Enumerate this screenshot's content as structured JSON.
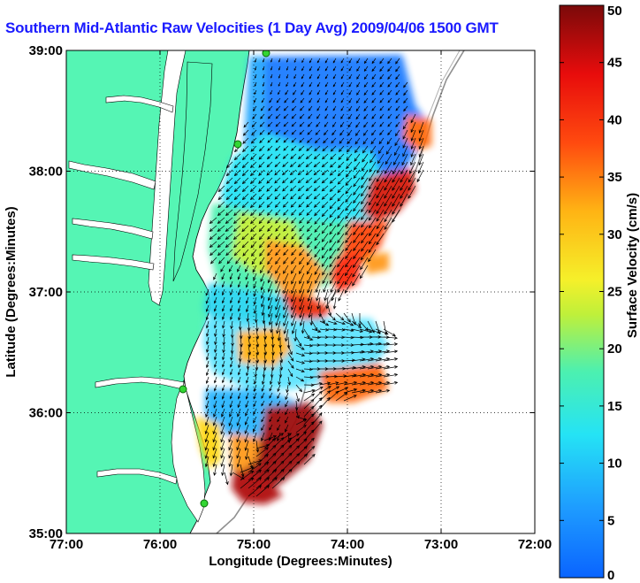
{
  "chart_data": {
    "type": "heatmap",
    "title": "Southern Mid-Atlantic Raw Velocities (1 Day Avg) 2009/04/06 1500 GMT",
    "xlabel": "Longitude (Degrees:Minutes)",
    "ylabel": "Latitude (Degrees:Minutes)",
    "x_ticks": [
      {
        "value": -77,
        "label": "77:00"
      },
      {
        "value": -76,
        "label": "76:00"
      },
      {
        "value": -75,
        "label": "75:00"
      },
      {
        "value": -74,
        "label": "74:00"
      },
      {
        "value": -73,
        "label": "73:00"
      },
      {
        "value": -72,
        "label": "72:00"
      }
    ],
    "y_ticks": [
      {
        "value": 35,
        "label": "35:00"
      },
      {
        "value": 36,
        "label": "36:00"
      },
      {
        "value": 37,
        "label": "37:00"
      },
      {
        "value": 38,
        "label": "38:00"
      },
      {
        "value": 39,
        "label": "39:00"
      }
    ],
    "xlim": [
      -77,
      -72
    ],
    "ylim": [
      35,
      39
    ],
    "grid": true,
    "colorbar": {
      "label": "Surface Velocity (cm/s)",
      "range": [
        0,
        50
      ],
      "ticks": [
        "0",
        "5",
        "10",
        "15",
        "20",
        "25",
        "30",
        "35",
        "40",
        "45",
        "50"
      ]
    },
    "velocity_field_samples": [
      {
        "lon": -74.8,
        "lat": 38.9,
        "speed": 4,
        "dir_deg": 200
      },
      {
        "lon": -74.2,
        "lat": 38.7,
        "speed": 8,
        "dir_deg": 210
      },
      {
        "lon": -73.5,
        "lat": 38.5,
        "speed": 10,
        "dir_deg": 220
      },
      {
        "lon": -73.2,
        "lat": 38.3,
        "speed": 32,
        "dir_deg": 200
      },
      {
        "lon": -74.6,
        "lat": 38.4,
        "speed": 12,
        "dir_deg": 225
      },
      {
        "lon": -75.2,
        "lat": 38.0,
        "speed": 20,
        "dir_deg": 225
      },
      {
        "lon": -74.4,
        "lat": 38.0,
        "speed": 18,
        "dir_deg": 230
      },
      {
        "lon": -73.4,
        "lat": 37.9,
        "speed": 42,
        "dir_deg": 210
      },
      {
        "lon": -75.3,
        "lat": 37.5,
        "speed": 22,
        "dir_deg": 230
      },
      {
        "lon": -74.6,
        "lat": 37.5,
        "speed": 16,
        "dir_deg": 220
      },
      {
        "lon": -73.9,
        "lat": 37.4,
        "speed": 30,
        "dir_deg": 215
      },
      {
        "lon": -73.7,
        "lat": 37.2,
        "speed": 45,
        "dir_deg": 210
      },
      {
        "lon": -74.6,
        "lat": 36.9,
        "speed": 38,
        "dir_deg": 200
      },
      {
        "lon": -75.2,
        "lat": 37.0,
        "speed": 12,
        "dir_deg": 200
      },
      {
        "lon": -75.0,
        "lat": 36.6,
        "speed": 26,
        "dir_deg": 170
      },
      {
        "lon": -74.3,
        "lat": 36.5,
        "speed": 18,
        "dir_deg": 90
      },
      {
        "lon": -73.8,
        "lat": 36.3,
        "speed": 40,
        "dir_deg": 80
      },
      {
        "lon": -75.2,
        "lat": 36.3,
        "speed": 12,
        "dir_deg": 200
      },
      {
        "lon": -74.8,
        "lat": 36.0,
        "speed": 10,
        "dir_deg": 210
      },
      {
        "lon": -74.3,
        "lat": 35.9,
        "speed": 44,
        "dir_deg": 40
      },
      {
        "lon": -75.2,
        "lat": 35.8,
        "speed": 26,
        "dir_deg": 200
      },
      {
        "lon": -74.8,
        "lat": 35.6,
        "speed": 48,
        "dir_deg": 45
      },
      {
        "lon": -75.0,
        "lat": 35.3,
        "speed": 50,
        "dir_deg": 50
      }
    ]
  }
}
